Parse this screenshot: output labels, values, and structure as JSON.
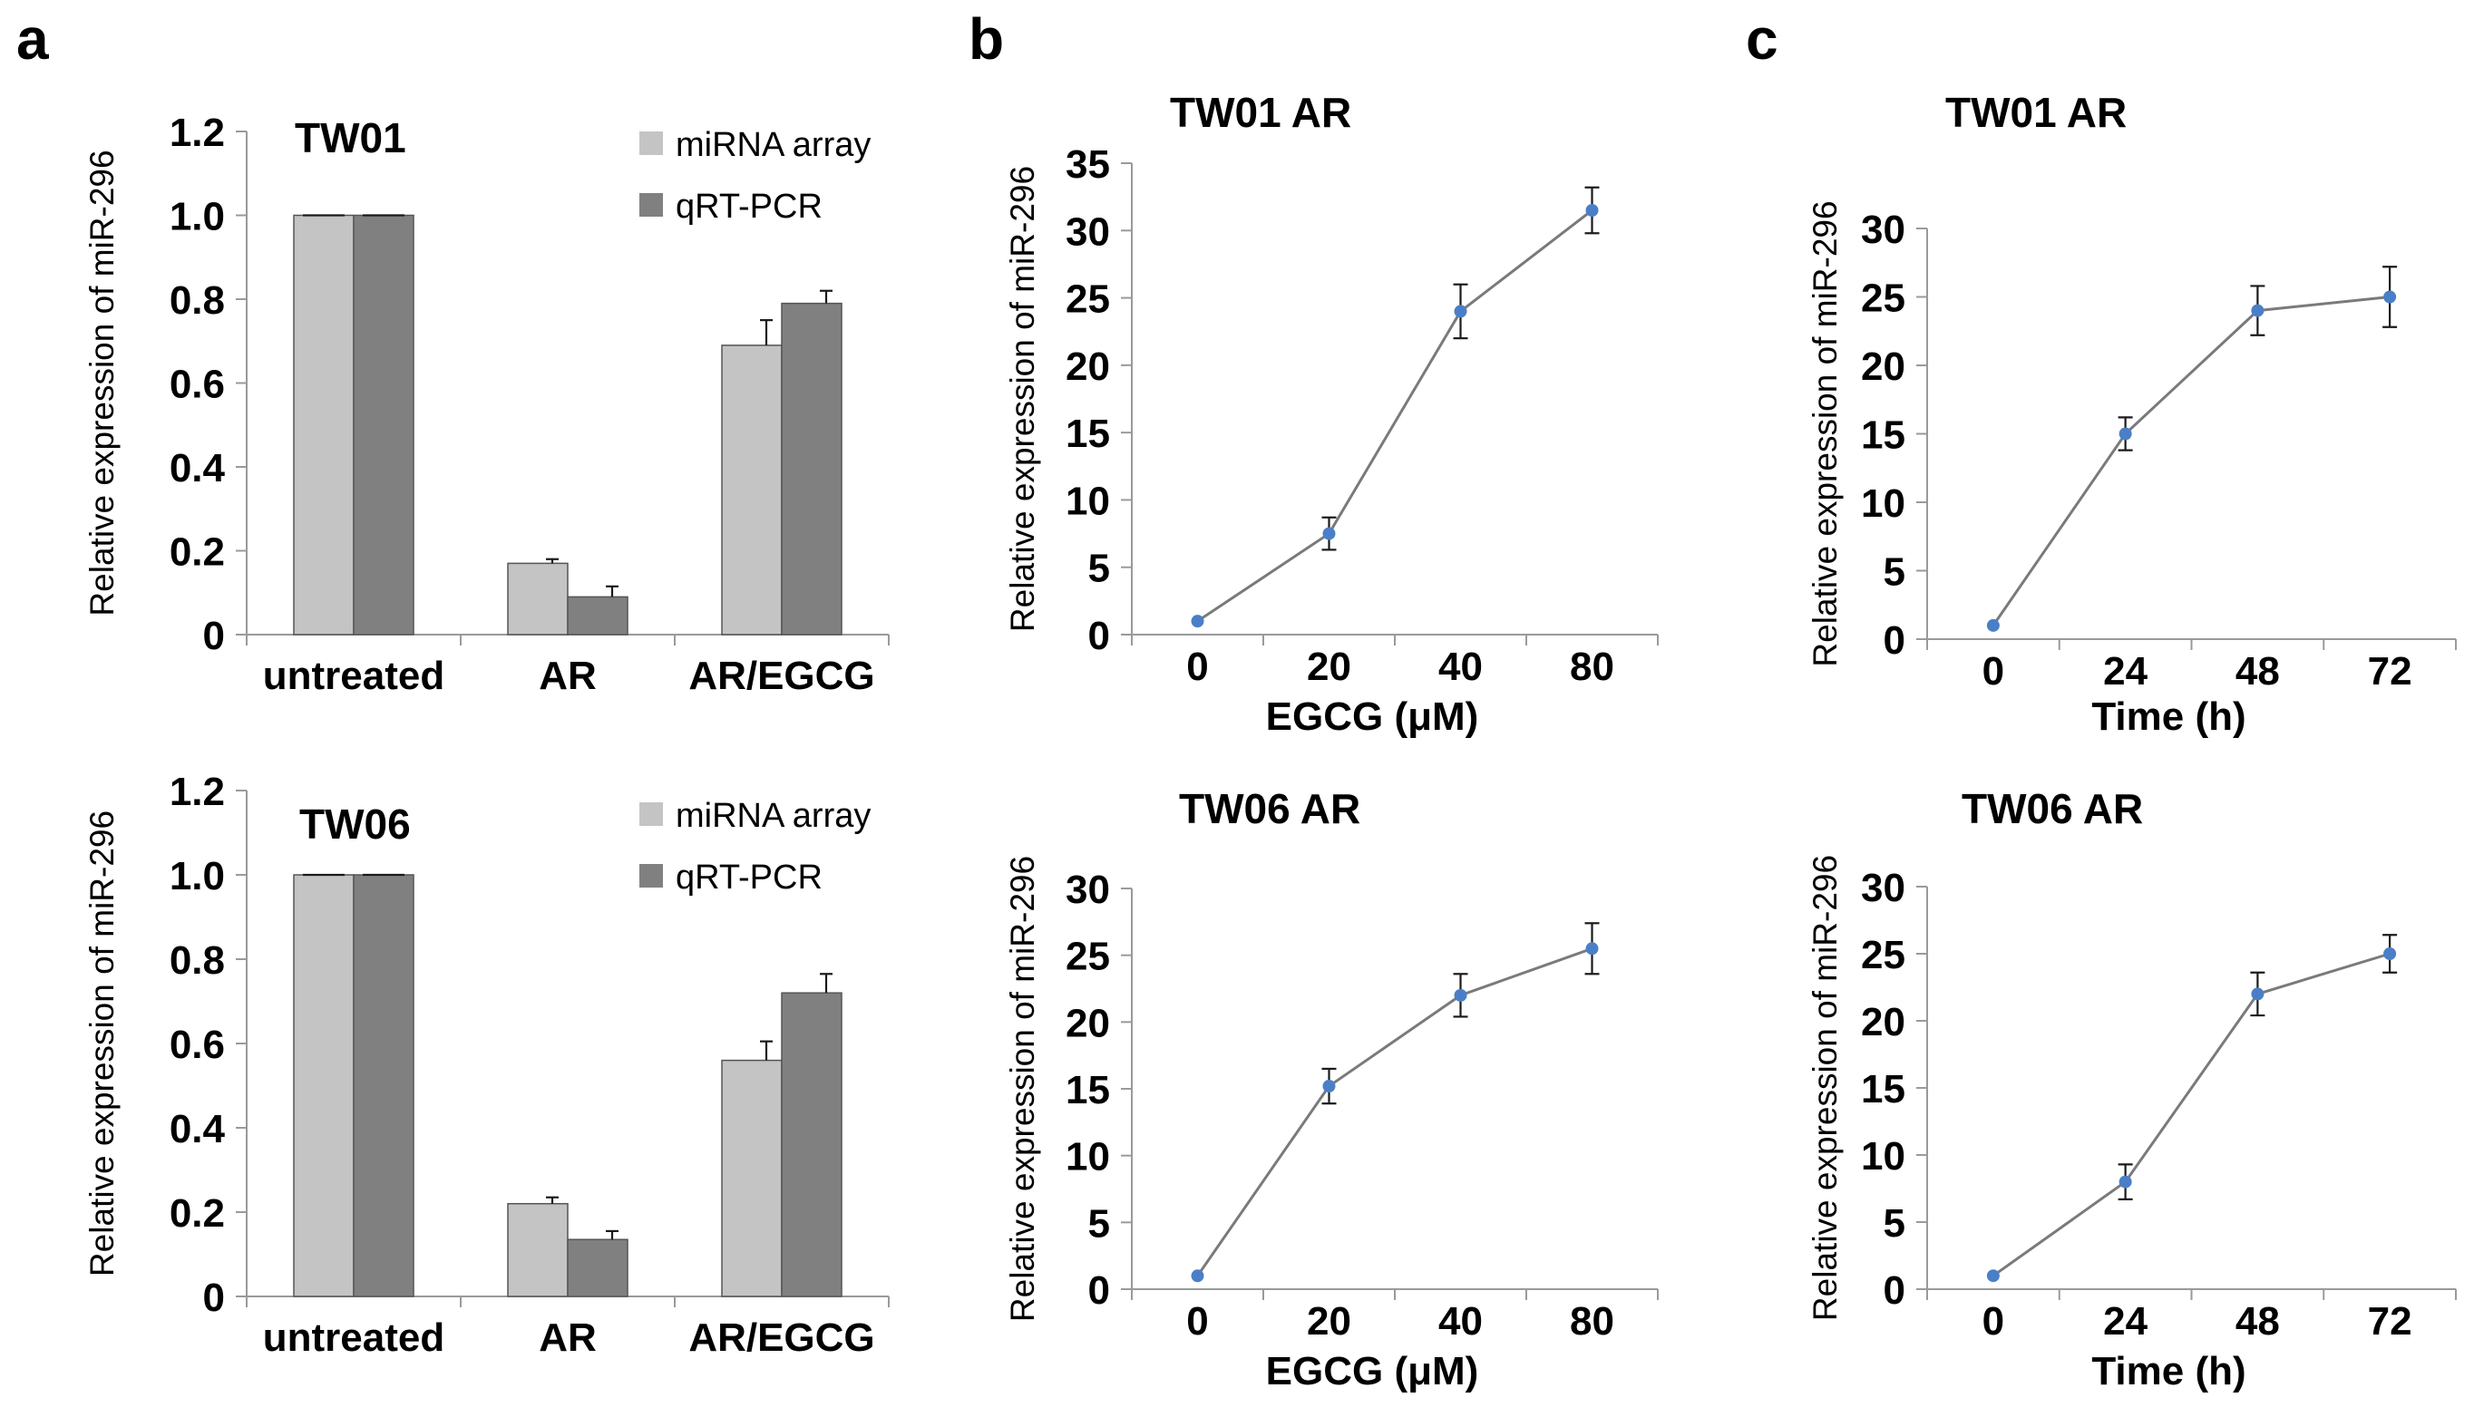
{
  "panel_labels": [
    "a",
    "b",
    "c"
  ],
  "chart_data": [
    {
      "id": "a_top",
      "panel": "a",
      "type": "bar",
      "title": "TW01",
      "ylabel": "Relative expression of miR-296",
      "xlabel": "",
      "categories": [
        "untreated",
        "AR",
        "AR/EGCG"
      ],
      "ylim": [
        0,
        1.2
      ],
      "yticks": [
        0,
        0.2,
        0.4,
        0.6,
        0.8,
        1.0,
        1.2
      ],
      "ytick_labels": [
        "0",
        "0.2",
        "0.4",
        "0.6",
        "0.8",
        "1.0",
        "1.2"
      ],
      "legend": "top-right",
      "series": [
        {
          "name": "miRNA array",
          "color": "#c4c4c4",
          "values": [
            1.0,
            0.17,
            0.69
          ],
          "errors": [
            0.0,
            0.01,
            0.06
          ]
        },
        {
          "name": "qRT-PCR",
          "color": "#808080",
          "values": [
            1.0,
            0.09,
            0.79
          ],
          "errors": [
            0.0,
            0.025,
            0.03
          ]
        }
      ]
    },
    {
      "id": "a_bottom",
      "panel": "a",
      "type": "bar",
      "title": "TW06",
      "ylabel": "Relative expression of miR-296",
      "xlabel": "",
      "categories": [
        "untreated",
        "AR",
        "AR/EGCG"
      ],
      "ylim": [
        0,
        1.2
      ],
      "yticks": [
        0,
        0.2,
        0.4,
        0.6,
        0.8,
        1.0,
        1.2
      ],
      "ytick_labels": [
        "0",
        "0.2",
        "0.4",
        "0.6",
        "0.8",
        "1.0",
        "1.2"
      ],
      "legend": "top-right",
      "series": [
        {
          "name": "miRNA array",
          "color": "#c4c4c4",
          "values": [
            1.0,
            0.22,
            0.56
          ],
          "errors": [
            0.0,
            0.015,
            0.045
          ]
        },
        {
          "name": "qRT-PCR",
          "color": "#808080",
          "values": [
            1.0,
            0.135,
            0.72
          ],
          "errors": [
            0.0,
            0.02,
            0.045
          ]
        }
      ]
    },
    {
      "id": "b_top",
      "panel": "b",
      "type": "line",
      "title": "TW01 AR",
      "ylabel": "Relative expression of miR-296",
      "xlabel": "EGCG (μM)",
      "x": [
        "0",
        "20",
        "40",
        "80"
      ],
      "ylim": [
        0,
        35
      ],
      "yticks": [
        0,
        5,
        10,
        15,
        20,
        25,
        30,
        35
      ],
      "series": [
        {
          "name": "TW01 AR",
          "values": [
            1.0,
            7.5,
            24.0,
            31.5
          ],
          "errors": [
            0.0,
            1.2,
            2.0,
            1.7
          ]
        }
      ]
    },
    {
      "id": "b_bottom",
      "panel": "b",
      "type": "line",
      "title": "TW06 AR",
      "ylabel": "Relative expression of miR-296",
      "xlabel": "EGCG (μM)",
      "x": [
        "0",
        "20",
        "40",
        "80"
      ],
      "ylim": [
        0,
        30
      ],
      "yticks": [
        0,
        5,
        10,
        15,
        20,
        25,
        30
      ],
      "series": [
        {
          "name": "TW06 AR",
          "values": [
            1.0,
            15.2,
            22.0,
            25.5
          ],
          "errors": [
            0.0,
            1.3,
            1.6,
            1.9
          ]
        }
      ]
    },
    {
      "id": "c_top",
      "panel": "c",
      "type": "line",
      "title": "TW01 AR",
      "ylabel": "Relative expression of miR-296",
      "xlabel": "Time (h)",
      "x": [
        "0",
        "24",
        "48",
        "72"
      ],
      "ylim": [
        0,
        30
      ],
      "yticks": [
        0,
        5,
        10,
        15,
        20,
        25,
        30
      ],
      "series": [
        {
          "name": "TW01 AR",
          "values": [
            1.0,
            15.0,
            24.0,
            25.0
          ],
          "errors": [
            0.0,
            1.2,
            1.8,
            2.2
          ]
        }
      ]
    },
    {
      "id": "c_bottom",
      "panel": "c",
      "type": "line",
      "title": "TW06 AR",
      "ylabel": "Relative expression of miR-296",
      "xlabel": "Time (h)",
      "x": [
        "0",
        "24",
        "48",
        "72"
      ],
      "ylim": [
        0,
        30
      ],
      "yticks": [
        0,
        5,
        10,
        15,
        20,
        25,
        30
      ],
      "series": [
        {
          "name": "TW06 AR",
          "values": [
            1.0,
            8.0,
            22.0,
            25.0
          ],
          "errors": [
            0.0,
            1.3,
            1.6,
            1.4
          ]
        }
      ]
    }
  ]
}
